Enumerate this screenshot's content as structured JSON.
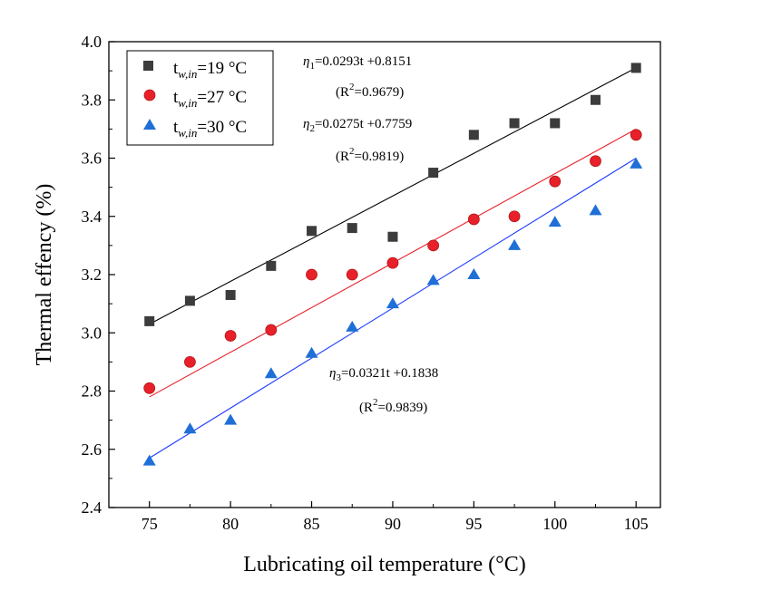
{
  "chart_data": {
    "type": "scatter",
    "xlabel": "Lubricating oil temperature (°C)",
    "ylabel": "Thermal effency (%)",
    "xlim": [
      72.5,
      106.5
    ],
    "ylim": [
      2.4,
      4.0
    ],
    "x_ticks": [
      75,
      80,
      85,
      90,
      95,
      100,
      105
    ],
    "y_ticks": [
      2.4,
      2.6,
      2.8,
      3.0,
      3.2,
      3.4,
      3.6,
      3.8,
      4.0
    ],
    "x_tick_labels": [
      "75",
      "80",
      "85",
      "90",
      "95",
      "100",
      "105"
    ],
    "y_tick_labels": [
      "2.4",
      "2.6",
      "2.8",
      "3.0",
      "3.2",
      "3.4",
      "3.6",
      "3.8",
      "4.0"
    ],
    "x": [
      75,
      77.5,
      80,
      82.5,
      85,
      87.5,
      90,
      92.5,
      95,
      97.5,
      100,
      102.5,
      105
    ],
    "series": [
      {
        "name": "t_w,in=19 °C",
        "legend_main": "t",
        "legend_sub": "w,in",
        "legend_rest": "=19 °C",
        "marker": "square",
        "color": "#3c3c3c",
        "fit_color": "#000000",
        "values": [
          3.04,
          3.11,
          3.13,
          3.23,
          3.35,
          3.36,
          3.33,
          3.55,
          3.68,
          3.72,
          3.72,
          3.8,
          3.91
        ],
        "fit": [
          3.03,
          3.91
        ]
      },
      {
        "name": "t_w,in=27 °C",
        "legend_main": "t",
        "legend_sub": "w,in",
        "legend_rest": "=27 °C",
        "marker": "circle",
        "color": "#e8202a",
        "fit_color": "#e8202a",
        "values": [
          2.81,
          2.9,
          2.99,
          3.01,
          3.2,
          3.2,
          3.24,
          3.3,
          3.39,
          3.4,
          3.52,
          3.59,
          3.68
        ],
        "fit": [
          2.78,
          3.7
        ]
      },
      {
        "name": "t_w,in=30 °C",
        "legend_main": "t",
        "legend_sub": "w,in",
        "legend_rest": "=30 °C",
        "marker": "triangle",
        "color": "#1f6fd6",
        "fit_color": "#1f3cff",
        "values": [
          2.56,
          2.67,
          2.7,
          2.86,
          2.93,
          3.02,
          3.1,
          3.18,
          3.2,
          3.3,
          3.38,
          3.42,
          3.58
        ],
        "fit": [
          2.57,
          3.6
        ]
      }
    ],
    "annotations": [
      {
        "eta": "η",
        "sub": "1",
        "eq": "=0.0293t +0.8151",
        "r_open": "(R",
        "sup": "2",
        "r_close": "=0.9679)"
      },
      {
        "eta": "η",
        "sub": "2",
        "eq": "=0.0275t +0.7759",
        "r_open": "(R",
        "sup": "2",
        "r_close": "=0.9819)"
      },
      {
        "eta": "η",
        "sub": "3",
        "eq": "=0.0321t +0.1838",
        "r_open": "(R",
        "sup": "2",
        "r_close": "=0.9839)"
      }
    ],
    "legend_position": "top-left",
    "grid": false
  }
}
